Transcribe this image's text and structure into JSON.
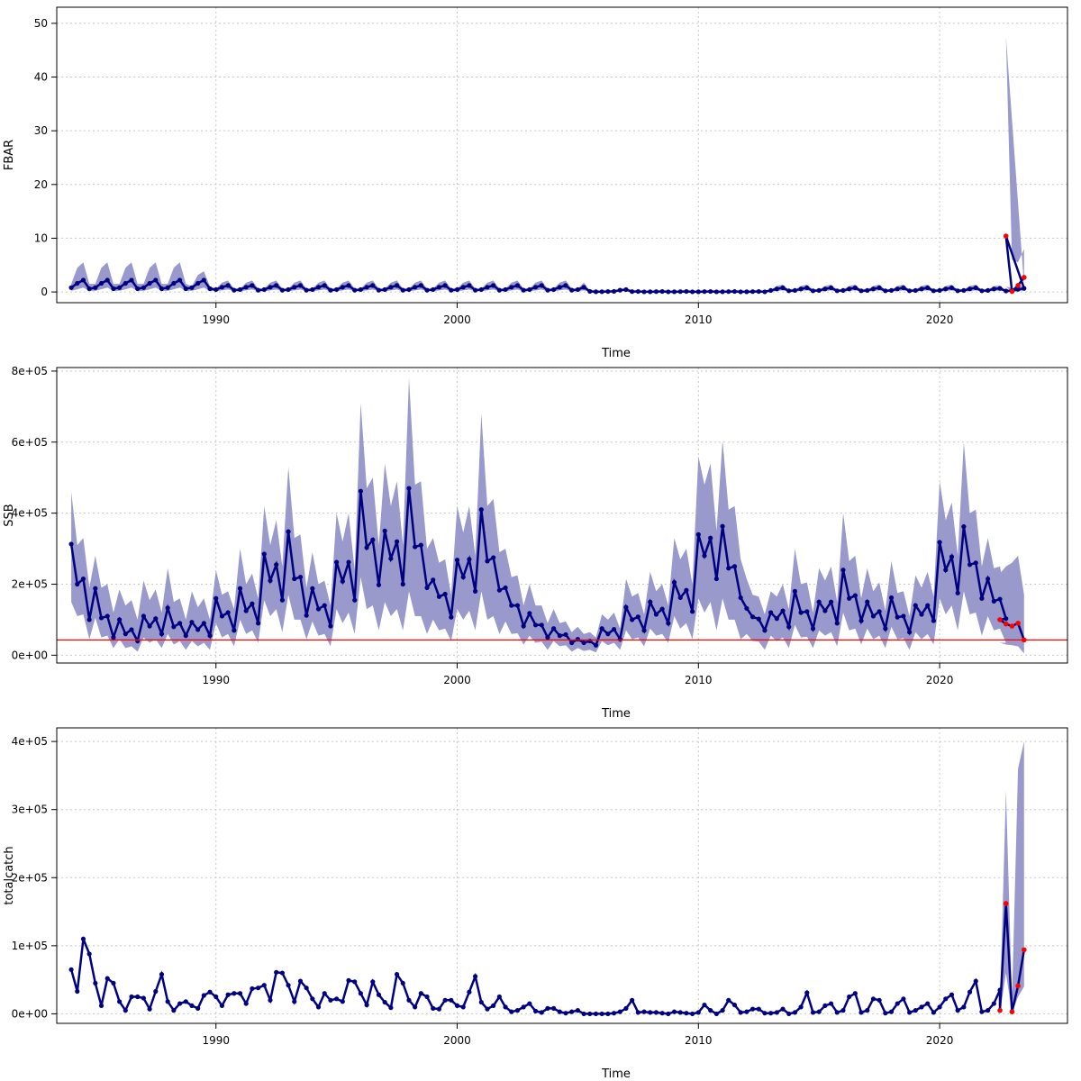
{
  "colors": {
    "band": "#9999cc",
    "line": "#000080",
    "forecast_point": "#ff0000",
    "reference_line": "#ff0000",
    "grid": "#c8c8c8",
    "frame": "#000000"
  },
  "chart_data": [
    {
      "type": "line",
      "panel": "fbar",
      "title": "",
      "xlabel": "Time",
      "ylabel": "FBAR",
      "xlim": [
        1983.4,
        2025.3
      ],
      "ylim": [
        -2,
        53
      ],
      "x_ticks": [
        1990,
        2000,
        2010,
        2020
      ],
      "x_tick_labels": [
        "1990",
        "2000",
        "2010",
        "2020"
      ],
      "y_ticks": [
        0,
        10,
        20,
        30,
        40,
        50
      ],
      "y_tick_labels": [
        "0",
        "10",
        "20",
        "30",
        "40",
        "50"
      ],
      "grid": true,
      "start": 1984.0,
      "step": 0.25,
      "cycles": 39,
      "cycle_values": [
        0.8,
        1.6,
        2.2,
        0.6
      ],
      "cycle_upper": [
        1.5,
        4.5,
        5.5,
        1.5
      ],
      "cycle_lower": [
        0.2,
        0.5,
        0.8,
        0.2
      ],
      "cycle_gap": 9,
      "forecast": {
        "x": [
          2022.75,
          2023.0,
          2023.25,
          2023.5
        ],
        "values": [
          10.4,
          0.1,
          1.2,
          2.7
        ],
        "upper": [
          47.5,
          6.0,
          5.5,
          8.0
        ],
        "lower": [
          1.0,
          0.0,
          0.1,
          0.3
        ]
      },
      "reference_line": null
    },
    {
      "type": "line",
      "panel": "ssb",
      "title": "",
      "xlabel": "Time",
      "ylabel": "SSB",
      "xlim": [
        1983.4,
        2025.3
      ],
      "ylim": [
        -22000,
        810000
      ],
      "x_ticks": [
        1990,
        2000,
        2010,
        2020
      ],
      "x_tick_labels": [
        "1990",
        "2000",
        "2010",
        "2020"
      ],
      "y_ticks": [
        0,
        200000,
        400000,
        600000,
        800000
      ],
      "y_tick_labels": [
        "0e+00",
        "2e+05",
        "4e+05",
        "6e+05",
        "8e+05"
      ],
      "grid": true,
      "series_x_start": 1984.0,
      "step": 0.25,
      "values": [
        313000,
        200000,
        215000,
        100000,
        188000,
        105000,
        110000,
        50000,
        100000,
        60000,
        72000,
        40000,
        110000,
        82000,
        103000,
        60000,
        133000,
        80000,
        90000,
        55000,
        93000,
        72000,
        90000,
        55000,
        160000,
        110000,
        120000,
        70000,
        188000,
        125000,
        145000,
        90000,
        285000,
        210000,
        255000,
        155000,
        348000,
        215000,
        220000,
        112000,
        188000,
        130000,
        140000,
        82000,
        262000,
        208000,
        262000,
        155000,
        462000,
        303000,
        325000,
        198000,
        350000,
        272000,
        320000,
        200000,
        470000,
        305000,
        310000,
        190000,
        212000,
        165000,
        172000,
        107000,
        268000,
        220000,
        270000,
        180000,
        410000,
        265000,
        275000,
        183000,
        190000,
        140000,
        140000,
        82000,
        118000,
        85000,
        85000,
        50000,
        75000,
        55000,
        58000,
        35000,
        45000,
        35000,
        40000,
        28000,
        75000,
        60000,
        73000,
        45000,
        135000,
        100000,
        108000,
        70000,
        150000,
        115000,
        130000,
        90000,
        205000,
        162000,
        183000,
        123000,
        340000,
        280000,
        330000,
        215000,
        363000,
        245000,
        250000,
        162000,
        132000,
        108000,
        102000,
        70000,
        120000,
        103000,
        125000,
        80000,
        180000,
        120000,
        123000,
        75000,
        150000,
        125000,
        150000,
        90000,
        240000,
        160000,
        168000,
        97000,
        150000,
        110000,
        123000,
        75000,
        162000,
        107000,
        110000,
        65000,
        140000,
        115000,
        140000,
        97000,
        318000,
        240000,
        277000,
        175000,
        362000,
        255000,
        260000,
        160000,
        215000,
        152000,
        158000,
        103000
      ],
      "upper": [
        460000,
        310000,
        330000,
        190000,
        280000,
        190000,
        200000,
        120000,
        185000,
        140000,
        155000,
        100000,
        210000,
        155000,
        185000,
        120000,
        245000,
        150000,
        160000,
        100000,
        180000,
        135000,
        160000,
        100000,
        240000,
        170000,
        180000,
        130000,
        300000,
        200000,
        230000,
        160000,
        420000,
        310000,
        380000,
        250000,
        530000,
        330000,
        340000,
        190000,
        290000,
        200000,
        210000,
        140000,
        400000,
        320000,
        400000,
        240000,
        710000,
        470000,
        500000,
        310000,
        540000,
        420000,
        490000,
        310000,
        780000,
        480000,
        490000,
        300000,
        330000,
        260000,
        270000,
        170000,
        420000,
        345000,
        420000,
        280000,
        680000,
        420000,
        440000,
        290000,
        300000,
        220000,
        225000,
        140000,
        200000,
        140000,
        140000,
        90000,
        130000,
        90000,
        95000,
        65000,
        80000,
        60000,
        65000,
        50000,
        115000,
        100000,
        120000,
        75000,
        215000,
        165000,
        175000,
        115000,
        235000,
        180000,
        200000,
        140000,
        330000,
        270000,
        300000,
        200000,
        560000,
        480000,
        540000,
        350000,
        605000,
        410000,
        420000,
        270000,
        215000,
        170000,
        165000,
        115000,
        180000,
        165000,
        200000,
        130000,
        300000,
        200000,
        205000,
        120000,
        245000,
        210000,
        250000,
        150000,
        400000,
        265000,
        280000,
        160000,
        245000,
        180000,
        205000,
        125000,
        265000,
        175000,
        180000,
        110000,
        225000,
        190000,
        235000,
        165000,
        490000,
        380000,
        430000,
        280000,
        600000,
        400000,
        410000,
        250000,
        330000,
        245000,
        250000,
        165000
      ],
      "lower": [
        150000,
        110000,
        115000,
        45000,
        105000,
        50000,
        55000,
        20000,
        45000,
        20000,
        25000,
        10000,
        50000,
        35000,
        45000,
        20000,
        60000,
        30000,
        40000,
        15000,
        40000,
        25000,
        35000,
        15000,
        90000,
        50000,
        60000,
        25000,
        100000,
        60000,
        70000,
        35000,
        155000,
        110000,
        130000,
        65000,
        170000,
        100000,
        100000,
        45000,
        95000,
        55000,
        60000,
        25000,
        130000,
        90000,
        120000,
        60000,
        220000,
        130000,
        140000,
        70000,
        150000,
        110000,
        130000,
        70000,
        180000,
        110000,
        110000,
        60000,
        100000,
        70000,
        75000,
        40000,
        130000,
        100000,
        125000,
        70000,
        180000,
        100000,
        110000,
        60000,
        95000,
        60000,
        62000,
        30000,
        55000,
        35000,
        38000,
        15000,
        40000,
        25000,
        28000,
        10000,
        20000,
        12000,
        15000,
        8000,
        40000,
        28000,
        35000,
        15000,
        70000,
        45000,
        50000,
        25000,
        75000,
        55000,
        60000,
        35000,
        110000,
        75000,
        90000,
        45000,
        160000,
        120000,
        150000,
        70000,
        160000,
        100000,
        100000,
        45000,
        60000,
        40000,
        38000,
        15000,
        55000,
        40000,
        50000,
        20000,
        85000,
        50000,
        52000,
        20000,
        70000,
        55000,
        65000,
        25000,
        120000,
        70000,
        75000,
        30000,
        75000,
        45000,
        55000,
        20000,
        80000,
        45000,
        48000,
        15000,
        65000,
        45000,
        60000,
        30000,
        160000,
        115000,
        140000,
        70000,
        180000,
        115000,
        120000,
        55000,
        110000,
        70000,
        75000,
        35000
      ],
      "forecast": {
        "x": [
          2022.5,
          2022.75,
          2023.0,
          2023.25,
          2023.5
        ],
        "values": [
          100000,
          88000,
          82000,
          90000,
          43000
        ],
        "upper": [
          230000,
          250000,
          260000,
          280000,
          170000
        ],
        "lower": [
          35000,
          30000,
          28000,
          25000,
          5000
        ]
      },
      "reference_line": 43000
    },
    {
      "type": "line",
      "panel": "catch",
      "title": "",
      "xlabel": "Time",
      "ylabel": "totalcatch",
      "xlim": [
        1983.4,
        2025.3
      ],
      "ylim": [
        -14000,
        420000
      ],
      "x_ticks": [
        1990,
        2000,
        2010,
        2020
      ],
      "x_tick_labels": [
        "1990",
        "2000",
        "2010",
        "2020"
      ],
      "y_ticks": [
        0,
        100000,
        200000,
        300000,
        400000
      ],
      "y_tick_labels": [
        "0e+00",
        "1e+05",
        "2e+05",
        "3e+05",
        "4e+05"
      ],
      "grid": true,
      "series_x_start": 1984.0,
      "step": 0.25,
      "values": [
        65000,
        33000,
        110000,
        88000,
        45000,
        12000,
        52000,
        45000,
        18000,
        5000,
        25000,
        25000,
        23000,
        7000,
        33000,
        58000,
        18000,
        5000,
        15000,
        18000,
        12000,
        8000,
        27000,
        32000,
        25000,
        12000,
        28000,
        30000,
        30000,
        15000,
        37000,
        38000,
        42000,
        20000,
        61000,
        60000,
        42000,
        18000,
        48000,
        38000,
        22000,
        10000,
        30000,
        20000,
        22000,
        18000,
        49000,
        47000,
        30000,
        13000,
        47000,
        28000,
        17000,
        9000,
        58000,
        45000,
        20000,
        10000,
        30000,
        25000,
        8000,
        7000,
        20000,
        20000,
        12000,
        10000,
        32000,
        55000,
        17000,
        7000,
        12000,
        25000,
        10000,
        3000,
        5000,
        10000,
        15000,
        4000,
        2000,
        8000,
        8000,
        3000,
        1000,
        3000,
        5000,
        0,
        0,
        0,
        0,
        0,
        1000,
        3000,
        8000,
        20000,
        2000,
        3000,
        2000,
        2000,
        1000,
        0,
        3000,
        2000,
        1000,
        0,
        2000,
        13000,
        5000,
        0,
        5000,
        20000,
        13000,
        2000,
        3000,
        7000,
        7000,
        1000,
        1000,
        2000,
        7000,
        0,
        2000,
        10000,
        31000,
        2000,
        3000,
        12000,
        15000,
        2000,
        5000,
        25000,
        30000,
        2000,
        5000,
        22000,
        20000,
        1000,
        3000,
        15000,
        22000,
        2000,
        5000,
        10000,
        15000,
        2000,
        10000,
        22000,
        28000,
        5000,
        10000,
        32000,
        48000,
        3000,
        5000,
        15000,
        35000
      ],
      "forecast": {
        "x": [
          2022.5,
          2022.75,
          2023.0,
          2023.25,
          2023.5
        ],
        "values": [
          5000,
          162000,
          3000,
          41000,
          94000
        ],
        "upper": [
          12000,
          328000,
          20000,
          360000,
          400000
        ],
        "lower": [
          1000,
          60000,
          1000,
          25000,
          40000
        ]
      },
      "reference_line": null
    }
  ]
}
